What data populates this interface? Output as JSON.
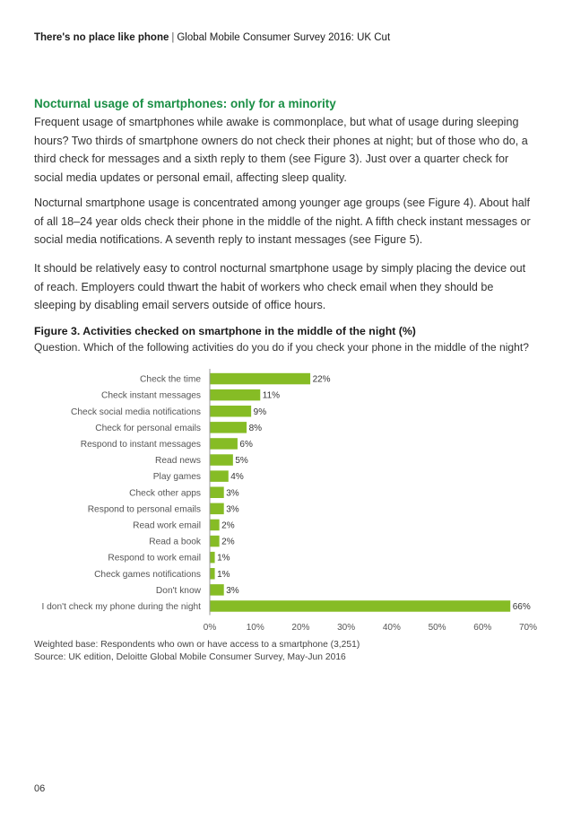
{
  "header": {
    "title_bold": "There's no place like phone",
    "separator": "|",
    "title_rest": "Global Mobile Consumer Survey 2016: UK Cut"
  },
  "section": {
    "title": "Nocturnal usage of smartphones: only for a minority",
    "paragraphs": [
      "Frequent usage of smartphones while awake is commonplace, but what of usage during sleeping hours? Two thirds of smartphone owners do not check their phones at night; but of those who do, a third check for messages and a sixth reply to them (see Figure 3). Just over a quarter check for social media updates or personal email, affecting sleep quality.",
      "Nocturnal smartphone usage is concentrated among younger age groups (see Figure 4). About half of all 18–24 year olds check their phone in the middle of the night. A fifth check instant messages or social media notifications. A seventh reply to instant messages (see Figure 5).",
      "It should be relatively easy to control nocturnal smartphone usage by simply placing the device out of reach. Employers could thwart the habit of workers who check email when they should be sleeping by disabling email servers outside of office hours."
    ]
  },
  "figure": {
    "title": "Figure 3. Activities checked on smartphone in the middle of the night (%)",
    "question": "Question. Which of the following activities do you do if you check your phone in the middle of the night?",
    "weighted_base": "Weighted base: Respondents who own or have access to a smartphone (3,251)",
    "source": "Source: UK edition, Deloitte Global Mobile Consumer Survey, May-Jun 2016"
  },
  "chart_data": {
    "type": "bar",
    "orientation": "horizontal",
    "categories": [
      "Check the time",
      "Check instant messages",
      "Check social media notifications",
      "Check for personal emails",
      "Respond to instant messages",
      "Read news",
      "Play games",
      "Check other apps",
      "Respond to personal emails",
      "Read work email",
      "Read a book",
      "Respond to work email",
      "Check games notifications",
      "Don't know",
      "I don't check my phone during the night"
    ],
    "values": [
      22,
      11,
      9,
      8,
      6,
      5,
      4,
      3,
      3,
      2,
      2,
      1,
      1,
      3,
      66
    ],
    "value_labels": [
      "22%",
      "11%",
      "9%",
      "8%",
      "6%",
      "5%",
      "4%",
      "3%",
      "3%",
      "2%",
      "2%",
      "1%",
      "1%",
      "3%",
      "66%"
    ],
    "xlim": [
      0,
      70
    ],
    "x_ticks": [
      0,
      10,
      20,
      30,
      40,
      50,
      60,
      70
    ],
    "x_tick_labels": [
      "0%",
      "10%",
      "20%",
      "30%",
      "40%",
      "50%",
      "60%",
      "70%"
    ],
    "grid": false,
    "bar_color": "#86bc25"
  },
  "page_number": "06"
}
